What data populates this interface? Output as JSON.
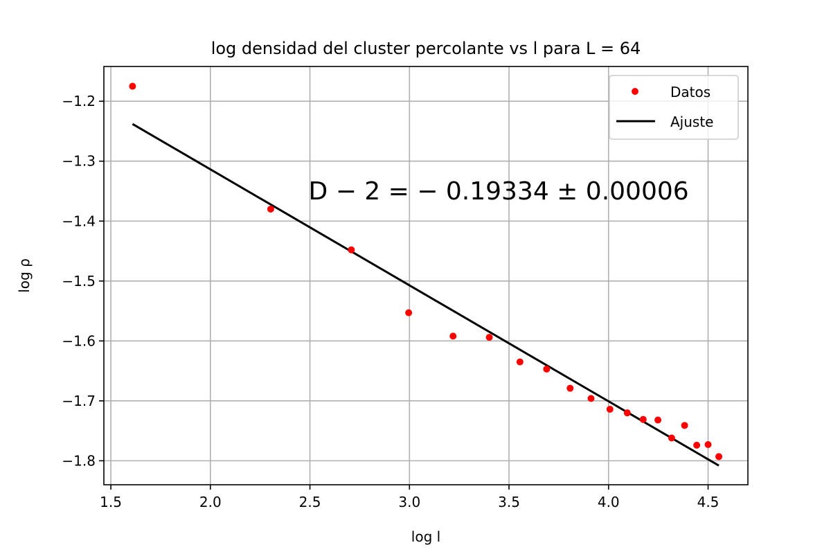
{
  "chart_data": {
    "type": "scatter",
    "title": "log densidad del cluster percolante vs l para L = 64",
    "xlabel": "log l",
    "ylabel": "log ρ",
    "xlim": [
      1.465,
      4.7
    ],
    "ylim": [
      -1.84,
      -1.142
    ],
    "xticks": [
      1.5,
      2.0,
      2.5,
      3.0,
      3.5,
      4.0,
      4.5
    ],
    "xtick_labels": [
      "1.5",
      "2.0",
      "2.5",
      "3.0",
      "3.5",
      "4.0",
      "4.5"
    ],
    "yticks": [
      -1.2,
      -1.3,
      -1.4,
      -1.5,
      -1.6,
      -1.7,
      -1.8
    ],
    "ytick_labels": [
      "−1.2",
      "−1.3",
      "−1.4",
      "−1.5",
      "−1.6",
      "−1.7",
      "−1.8"
    ],
    "grid": true,
    "legend_position": "top-right",
    "series": [
      {
        "name": "Datos",
        "kind": "scatter",
        "color": "#ff0000",
        "x": [
          1.609,
          2.303,
          2.708,
          2.996,
          3.219,
          3.401,
          3.555,
          3.689,
          3.807,
          3.912,
          4.007,
          4.094,
          4.174,
          4.248,
          4.317,
          4.382,
          4.443,
          4.5,
          4.554
        ],
        "y": [
          -1.175,
          -1.38,
          -1.448,
          -1.553,
          -1.592,
          -1.594,
          -1.635,
          -1.647,
          -1.679,
          -1.696,
          -1.714,
          -1.72,
          -1.731,
          -1.732,
          -1.762,
          -1.741,
          -1.774,
          -1.773,
          -1.793
        ]
      },
      {
        "name": "Ajuste",
        "kind": "line",
        "color": "#000000",
        "x": [
          1.609,
          4.554
        ],
        "y": [
          -1.238,
          -1.808
        ]
      }
    ],
    "annotation": {
      "text": "D − 2 = − 0.19334 ± 0.00006",
      "x": 2.5,
      "y": -1.35
    }
  }
}
